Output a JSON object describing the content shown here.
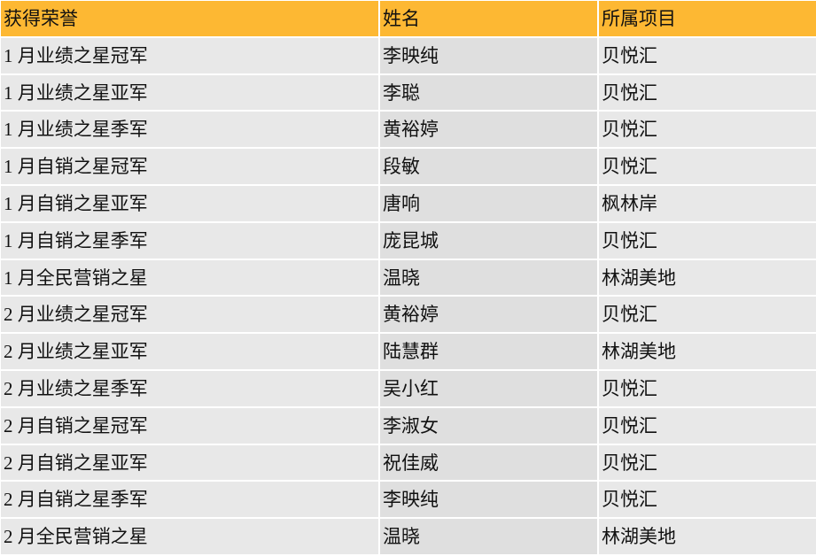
{
  "colors": {
    "header_bg": "#FDB833",
    "row_bg": "#E8E8E8",
    "name_col_bg": "#DFDFDF"
  },
  "headers": [
    "获得荣誉",
    "姓名",
    "所属项目"
  ],
  "rows": [
    [
      "1 月业绩之星冠军",
      "李映纯",
      "贝悦汇"
    ],
    [
      "1 月业绩之星亚军",
      "李聪",
      "贝悦汇"
    ],
    [
      "1 月业绩之星季军",
      "黄裕婷",
      "贝悦汇"
    ],
    [
      "1 月自销之星冠军",
      "段敏",
      "贝悦汇"
    ],
    [
      "1 月自销之星亚军",
      "唐响",
      "枫林岸"
    ],
    [
      "1 月自销之星季军",
      "庞昆城",
      "贝悦汇"
    ],
    [
      "1 月全民营销之星",
      "温晓",
      "林湖美地"
    ],
    [
      "2 月业绩之星冠军",
      "黄裕婷",
      "贝悦汇"
    ],
    [
      "2 月业绩之星亚军",
      "陆慧群",
      "林湖美地"
    ],
    [
      "2 月业绩之星季军",
      "吴小红",
      "贝悦汇"
    ],
    [
      "2 月自销之星冠军",
      "李淑女",
      "贝悦汇"
    ],
    [
      "2 月自销之星亚军",
      "祝佳威",
      "贝悦汇"
    ],
    [
      "2 月自销之星季军",
      "李映纯",
      "贝悦汇"
    ],
    [
      "2 月全民营销之星",
      "温晓",
      "林湖美地"
    ]
  ]
}
